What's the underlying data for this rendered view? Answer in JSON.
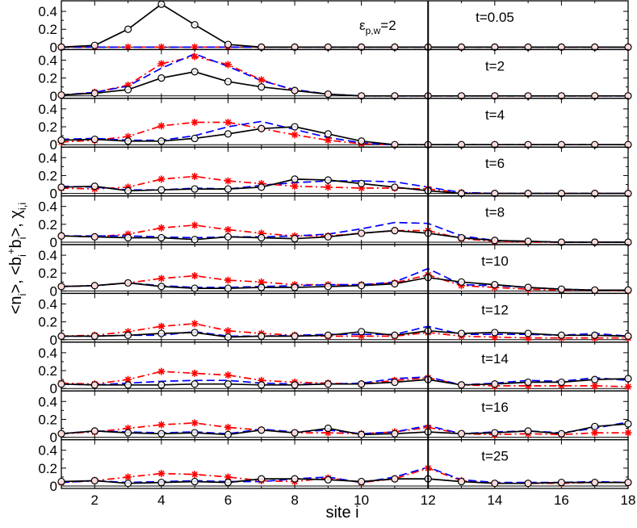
{
  "figure": {
    "ylabel_prefix": "<n",
    "ylabel_mid1": ">, <b",
    "ylabel_mid2": "b",
    "ylabel_mid3": ">, χ",
    "ylabel_sub_i": "i",
    "ylabel_sub_ii": "i,i",
    "ylabel_sup_plus": "+",
    "xlabel": "site i",
    "annotation_main": "ε",
    "annotation_sub": "p,w",
    "annotation_tail": "=2"
  },
  "chart_data": {
    "type": "line",
    "xlabel": "site i",
    "ylabel": "<n_i>, <b_i^+ b_i>, χ_{i,i}",
    "xlim": [
      1,
      18
    ],
    "x_ticks": [
      2,
      4,
      6,
      8,
      10,
      12,
      14,
      16,
      18
    ],
    "vertical_line_at": 12,
    "x": [
      1,
      2,
      3,
      4,
      5,
      6,
      7,
      8,
      9,
      10,
      11,
      12,
      13,
      14,
      15,
      16,
      17,
      18
    ],
    "series_styles": {
      "n": {
        "color": "#000000",
        "dash": "solid",
        "marker": "open-circle"
      },
      "b": {
        "color": "#0000ff",
        "dash": "dashed",
        "marker": "none"
      },
      "chi": {
        "color": "#ff0000",
        "dash": "dashdot",
        "marker": "star"
      }
    },
    "panels": [
      {
        "label": "t=0.05",
        "ylim": [
          0,
          0.5
        ],
        "y_ticks": [
          "0",
          "0.2",
          "0.4"
        ],
        "n": [
          0,
          0.02,
          0.2,
          0.48,
          0.25,
          0.03,
          0,
          0,
          0,
          0,
          0,
          0,
          0,
          0,
          0,
          0,
          0,
          0
        ],
        "b": [
          0,
          0,
          0,
          0,
          0,
          0,
          0,
          0,
          0,
          0,
          0,
          0,
          0,
          0,
          0,
          0,
          0,
          0
        ],
        "chi": [
          0,
          0,
          0,
          0,
          0,
          0,
          0,
          0,
          0,
          0,
          0,
          0,
          0,
          0,
          0,
          0,
          0,
          0
        ]
      },
      {
        "label": "t=2",
        "ylim": [
          0,
          0.5
        ],
        "y_ticks": [
          "0",
          "0.2",
          "0.4"
        ],
        "n": [
          0.01,
          0.03,
          0.07,
          0.2,
          0.27,
          0.16,
          0.1,
          0.06,
          0.02,
          0,
          0,
          0,
          0,
          0,
          0,
          0,
          0,
          0
        ],
        "b": [
          0.01,
          0.04,
          0.11,
          0.31,
          0.47,
          0.33,
          0.17,
          0.07,
          0.02,
          0,
          0,
          0,
          0,
          0,
          0,
          0,
          0,
          0
        ],
        "chi": [
          0.01,
          0.04,
          0.12,
          0.36,
          0.44,
          0.35,
          0.18,
          0.06,
          0.02,
          0,
          0,
          0,
          0,
          0,
          0,
          0,
          0,
          0
        ]
      },
      {
        "label": "t=4",
        "ylim": [
          0,
          0.5
        ],
        "y_ticks": [
          "0",
          "0.2",
          "0.4"
        ],
        "n": [
          0.05,
          0.06,
          0.04,
          0.04,
          0.07,
          0.12,
          0.18,
          0.2,
          0.12,
          0.04,
          0,
          0,
          0,
          0,
          0,
          0,
          0,
          0
        ],
        "b": [
          0.06,
          0.07,
          0.05,
          0.05,
          0.1,
          0.2,
          0.26,
          0.17,
          0.08,
          0.02,
          0,
          0,
          0,
          0,
          0,
          0,
          0,
          0
        ],
        "chi": [
          0.03,
          0.05,
          0.09,
          0.21,
          0.25,
          0.25,
          0.18,
          0.11,
          0.05,
          0.01,
          0,
          0,
          0,
          0,
          0,
          0,
          0,
          0
        ]
      },
      {
        "label": "t=6",
        "ylim": [
          0,
          0.5
        ],
        "y_ticks": [
          "0",
          "0.2",
          "0.4"
        ],
        "n": [
          0.07,
          0.08,
          0.03,
          0.04,
          0.05,
          0.05,
          0.07,
          0.16,
          0.15,
          0.11,
          0.07,
          0.03,
          0,
          0,
          0,
          0,
          0,
          0
        ],
        "b": [
          0.08,
          0.07,
          0.04,
          0.04,
          0.06,
          0.05,
          0.09,
          0.12,
          0.14,
          0.14,
          0.13,
          0.07,
          0.01,
          0,
          0,
          0,
          0,
          0
        ],
        "chi": [
          0.06,
          0.05,
          0.07,
          0.16,
          0.19,
          0.14,
          0.11,
          0.08,
          0.07,
          0.06,
          0.06,
          0.05,
          0.01,
          0,
          0,
          0,
          0,
          0
        ]
      },
      {
        "label": "t=8",
        "ylim": [
          0,
          0.5
        ],
        "y_ticks": [
          "0",
          "0.2",
          "0.4"
        ],
        "n": [
          0.07,
          0.06,
          0.05,
          0.05,
          0.03,
          0.06,
          0.05,
          0.04,
          0.06,
          0.1,
          0.13,
          0.1,
          0.05,
          0.02,
          0.01,
          0,
          0,
          0
        ],
        "b": [
          0.07,
          0.07,
          0.07,
          0.06,
          0.05,
          0.06,
          0.06,
          0.07,
          0.09,
          0.15,
          0.22,
          0.21,
          0.07,
          0.02,
          0.01,
          0,
          0,
          0
        ],
        "chi": [
          0.07,
          0.06,
          0.09,
          0.16,
          0.19,
          0.14,
          0.1,
          0.07,
          0.07,
          0.1,
          0.13,
          0.13,
          0.04,
          0.01,
          0,
          0,
          0,
          0
        ]
      },
      {
        "label": "t=10",
        "ylim": [
          0,
          0.5
        ],
        "y_ticks": [
          "0",
          "0.2",
          "0.4"
        ],
        "n": [
          0.05,
          0.06,
          0.09,
          0.05,
          0.03,
          0.03,
          0.04,
          0.04,
          0.05,
          0.06,
          0.08,
          0.15,
          0.1,
          0.07,
          0.04,
          0.02,
          0.01,
          0.01
        ],
        "b": [
          0.05,
          0.06,
          0.09,
          0.06,
          0.04,
          0.04,
          0.05,
          0.06,
          0.07,
          0.07,
          0.1,
          0.25,
          0.07,
          0.06,
          0.04,
          0.02,
          0.01,
          0.01
        ],
        "chi": [
          0.05,
          0.06,
          0.09,
          0.14,
          0.17,
          0.12,
          0.1,
          0.07,
          0.07,
          0.07,
          0.09,
          0.18,
          0.06,
          0.04,
          0.02,
          0.01,
          0.01,
          0
        ]
      },
      {
        "label": "t=12",
        "ylim": [
          0,
          0.5
        ],
        "y_ticks": [
          "0",
          "0.2",
          "0.4"
        ],
        "n": [
          0.04,
          0.04,
          0.05,
          0.07,
          0.08,
          0.03,
          0.04,
          0.04,
          0.05,
          0.09,
          0.05,
          0.1,
          0.07,
          0.08,
          0.07,
          0.05,
          0.05,
          0.04
        ],
        "b": [
          0.04,
          0.04,
          0.05,
          0.05,
          0.09,
          0.04,
          0.04,
          0.05,
          0.06,
          0.06,
          0.06,
          0.15,
          0.06,
          0.06,
          0.06,
          0.05,
          0.07,
          0.04
        ],
        "chi": [
          0.04,
          0.05,
          0.09,
          0.15,
          0.18,
          0.1,
          0.07,
          0.05,
          0.04,
          0.04,
          0.04,
          0.08,
          0.04,
          0.03,
          0.02,
          0.02,
          0.02,
          0.02
        ]
      },
      {
        "label": "t=14",
        "ylim": [
          0,
          0.5
        ],
        "y_ticks": [
          "0",
          "0.2",
          "0.4"
        ],
        "n": [
          0.05,
          0.04,
          0.04,
          0.04,
          0.05,
          0.05,
          0.04,
          0.04,
          0.05,
          0.05,
          0.07,
          0.1,
          0.04,
          0.05,
          0.07,
          0.07,
          0.1,
          0.11
        ],
        "b": [
          0.05,
          0.04,
          0.06,
          0.08,
          0.09,
          0.09,
          0.06,
          0.05,
          0.05,
          0.06,
          0.11,
          0.13,
          0.04,
          0.06,
          0.09,
          0.08,
          0.12,
          0.09
        ],
        "chi": [
          0.06,
          0.05,
          0.1,
          0.19,
          0.17,
          0.15,
          0.09,
          0.07,
          0.06,
          0.05,
          0.09,
          0.12,
          0.04,
          0.03,
          0.03,
          0.03,
          0.03,
          0.02
        ]
      },
      {
        "label": "t=16",
        "ylim": [
          0,
          0.5
        ],
        "y_ticks": [
          "0",
          "0.2",
          "0.4"
        ],
        "n": [
          0.04,
          0.07,
          0.05,
          0.04,
          0.05,
          0.03,
          0.08,
          0.05,
          0.1,
          0.03,
          0.04,
          0.06,
          0.04,
          0.05,
          0.07,
          0.04,
          0.12,
          0.15
        ],
        "b": [
          0.04,
          0.07,
          0.06,
          0.05,
          0.06,
          0.04,
          0.09,
          0.06,
          0.08,
          0.04,
          0.06,
          0.13,
          0.04,
          0.06,
          0.07,
          0.05,
          0.1,
          0.17
        ],
        "chi": [
          0.04,
          0.06,
          0.1,
          0.14,
          0.16,
          0.11,
          0.08,
          0.05,
          0.05,
          0.04,
          0.06,
          0.11,
          0.04,
          0.03,
          0.04,
          0.03,
          0.05,
          0.05
        ]
      },
      {
        "label": "t=25",
        "ylim": [
          0,
          0.5
        ],
        "y_ticks": [
          "0",
          "0.2",
          "0.4"
        ],
        "n": [
          0.05,
          0.06,
          0.03,
          0.04,
          0.05,
          0.04,
          0.08,
          0.08,
          0.07,
          0.05,
          0.08,
          0.08,
          0.05,
          0.03,
          0.03,
          0.04,
          0.04,
          0.04
        ],
        "b": [
          0.04,
          0.06,
          0.04,
          0.05,
          0.06,
          0.05,
          0.05,
          0.08,
          0.1,
          0.04,
          0.1,
          0.21,
          0.07,
          0.04,
          0.04,
          0.04,
          0.05,
          0.04
        ],
        "chi": [
          0.04,
          0.06,
          0.1,
          0.14,
          0.13,
          0.1,
          0.06,
          0.05,
          0.09,
          0.04,
          0.08,
          0.2,
          0.06,
          0.03,
          0.03,
          0.03,
          0.04,
          0.04
        ]
      }
    ]
  }
}
